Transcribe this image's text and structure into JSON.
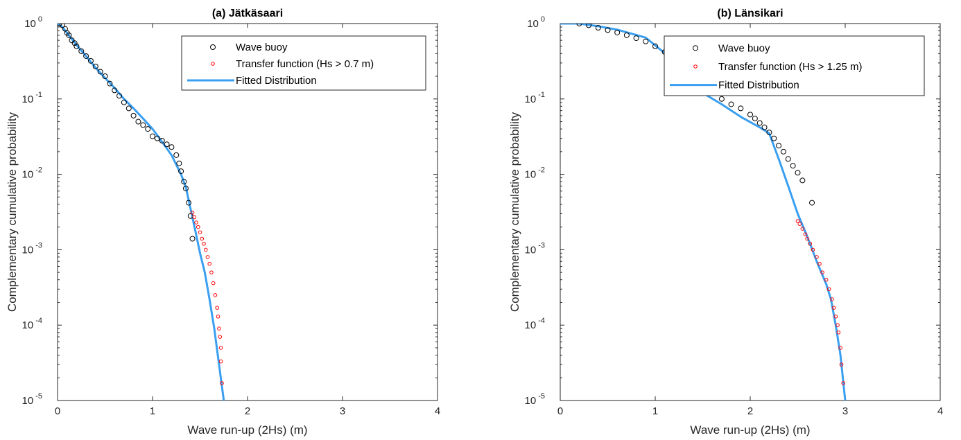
{
  "figure": {
    "colors": {
      "buoy": "#000000",
      "transfer": "#ff0000",
      "fit": "#3a9ff0",
      "axis": "#262626"
    }
  },
  "chart_data": [
    {
      "type": "scatter",
      "title": "(a) Jätkäsaari",
      "xlabel": "Wave run-up (2Hs) (m)",
      "ylabel": "Complementary cumulative probability",
      "xlim": [
        0,
        4
      ],
      "ylim": [
        1e-05,
        1
      ],
      "yscale": "log",
      "grid": false,
      "legend_position": "top-right",
      "x_ticks": [
        "0",
        "1",
        "2",
        "3",
        "4"
      ],
      "y_ticks": [
        {
          "base": "10",
          "exp": "0"
        },
        {
          "base": "10",
          "exp": "-1"
        },
        {
          "base": "10",
          "exp": "-2"
        },
        {
          "base": "10",
          "exp": "-3"
        },
        {
          "base": "10",
          "exp": "-4"
        },
        {
          "base": "10",
          "exp": "-5"
        }
      ],
      "series": [
        {
          "name": "Wave buoy",
          "marker": "circle",
          "x": [
            0.02,
            0.05,
            0.08,
            0.1,
            0.12,
            0.15,
            0.18,
            0.2,
            0.25,
            0.3,
            0.35,
            0.4,
            0.45,
            0.5,
            0.55,
            0.6,
            0.65,
            0.7,
            0.75,
            0.8,
            0.85,
            0.9,
            0.95,
            1.0,
            1.05,
            1.1,
            1.15,
            1.2,
            1.25,
            1.28,
            1.3,
            1.33,
            1.35,
            1.38,
            1.4,
            1.42
          ],
          "y": [
            1.0,
            0.95,
            0.85,
            0.75,
            0.7,
            0.6,
            0.55,
            0.5,
            0.43,
            0.37,
            0.32,
            0.27,
            0.23,
            0.2,
            0.16,
            0.13,
            0.11,
            0.09,
            0.075,
            0.06,
            0.05,
            0.045,
            0.04,
            0.032,
            0.03,
            0.028,
            0.025,
            0.023,
            0.018,
            0.014,
            0.011,
            0.008,
            0.0065,
            0.0042,
            0.0028,
            0.0014
          ]
        },
        {
          "name": "Transfer function (Hs > 0.7 m)",
          "marker": "circle",
          "x": [
            1.42,
            1.44,
            1.46,
            1.48,
            1.5,
            1.52,
            1.54,
            1.56,
            1.58,
            1.6,
            1.62,
            1.64,
            1.66,
            1.68,
            1.69,
            1.7,
            1.71,
            1.72,
            1.72,
            1.73
          ],
          "y": [
            0.0031,
            0.0027,
            0.0023,
            0.002,
            0.0017,
            0.0014,
            0.0012,
            0.001,
            0.0008,
            0.00065,
            0.0005,
            0.00036,
            0.00025,
            0.00017,
            0.00013,
            9e-05,
            7e-05,
            5e-05,
            3.3e-05,
            1.7e-05
          ]
        },
        {
          "name": "Fitted Distribution",
          "marker": "line",
          "x": [
            0.0,
            0.05,
            0.1,
            0.2,
            0.3,
            0.4,
            0.5,
            0.6,
            0.7,
            0.8,
            0.9,
            1.0,
            1.1,
            1.2,
            1.3,
            1.35,
            1.4,
            1.45,
            1.5,
            1.55,
            1.6,
            1.65,
            1.7,
            1.75
          ],
          "y": [
            1.0,
            0.9,
            0.75,
            0.52,
            0.37,
            0.26,
            0.19,
            0.14,
            0.1,
            0.075,
            0.055,
            0.04,
            0.027,
            0.018,
            0.01,
            0.0068,
            0.0035,
            0.0018,
            0.0009,
            0.0005,
            0.00022,
            9e-05,
            3e-05,
            1e-05
          ]
        }
      ]
    },
    {
      "type": "scatter",
      "title": "(b) Länsikari",
      "xlabel": "Wave run-up (2Hs) (m)",
      "ylabel": "Complementary cumulative probability",
      "xlim": [
        0,
        4
      ],
      "ylim": [
        1e-05,
        1
      ],
      "yscale": "log",
      "grid": false,
      "legend_position": "top-right",
      "x_ticks": [
        "0",
        "1",
        "2",
        "3",
        "4"
      ],
      "y_ticks": [
        {
          "base": "10",
          "exp": "0"
        },
        {
          "base": "10",
          "exp": "-1"
        },
        {
          "base": "10",
          "exp": "-2"
        },
        {
          "base": "10",
          "exp": "-3"
        },
        {
          "base": "10",
          "exp": "-4"
        },
        {
          "base": "10",
          "exp": "-5"
        }
      ],
      "series": [
        {
          "name": "Wave buoy",
          "marker": "circle",
          "x": [
            0.2,
            0.3,
            0.4,
            0.5,
            0.6,
            0.7,
            0.8,
            0.9,
            1.0,
            1.1,
            1.2,
            1.3,
            1.4,
            1.5,
            1.6,
            1.7,
            1.8,
            1.9,
            2.0,
            2.05,
            2.1,
            2.15,
            2.2,
            2.25,
            2.3,
            2.35,
            2.4,
            2.45,
            2.5,
            2.55,
            2.65
          ],
          "y": [
            1.0,
            0.95,
            0.88,
            0.82,
            0.76,
            0.7,
            0.64,
            0.58,
            0.5,
            0.42,
            0.34,
            0.27,
            0.21,
            0.16,
            0.12,
            0.1,
            0.085,
            0.075,
            0.062,
            0.055,
            0.048,
            0.042,
            0.036,
            0.03,
            0.024,
            0.02,
            0.016,
            0.013,
            0.0105,
            0.0083,
            0.0042
          ]
        },
        {
          "name": "Transfer function (Hs > 1.25 m)",
          "marker": "circle",
          "x": [
            2.5,
            2.52,
            2.55,
            2.58,
            2.6,
            2.63,
            2.66,
            2.7,
            2.73,
            2.76,
            2.8,
            2.83,
            2.86,
            2.88,
            2.9,
            2.92,
            2.93,
            2.95,
            2.96,
            2.98
          ],
          "y": [
            0.0024,
            0.0022,
            0.0019,
            0.0016,
            0.0014,
            0.0012,
            0.001,
            0.0008,
            0.00065,
            0.0005,
            0.0004,
            0.0003,
            0.00022,
            0.00017,
            0.00013,
            0.0001,
            8e-05,
            5e-05,
            3e-05,
            1.7e-05
          ]
        },
        {
          "name": "Fitted Distribution",
          "marker": "line",
          "x": [
            0.0,
            0.2,
            0.4,
            0.6,
            0.9,
            1.2,
            1.5,
            1.7,
            1.9,
            2.1,
            2.2,
            2.3,
            2.4,
            2.5,
            2.6,
            2.7,
            2.8,
            2.85,
            2.9,
            2.95,
            3.0
          ],
          "y": [
            1.0,
            1.0,
            0.92,
            0.83,
            0.65,
            0.32,
            0.12,
            0.085,
            0.058,
            0.042,
            0.035,
            0.016,
            0.007,
            0.003,
            0.0015,
            0.0007,
            0.00035,
            0.00022,
            0.0001,
            4e-05,
            1e-05
          ]
        }
      ]
    }
  ]
}
